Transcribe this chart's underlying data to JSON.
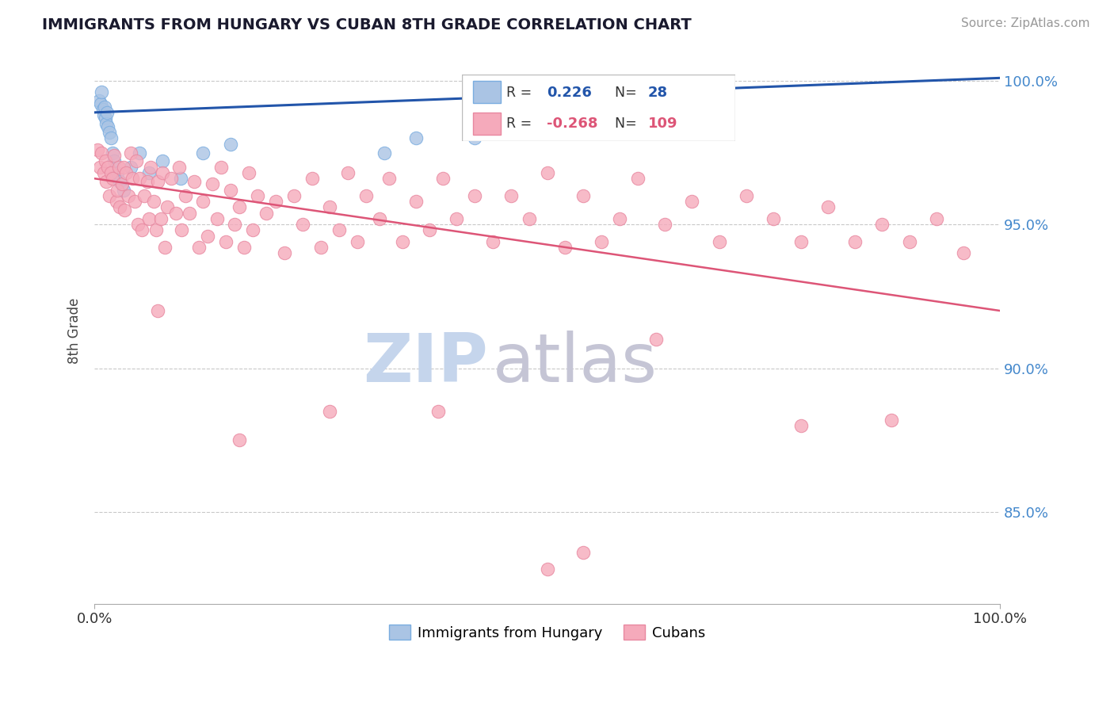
{
  "title": "IMMIGRANTS FROM HUNGARY VS CUBAN 8TH GRADE CORRELATION CHART",
  "source_text": "Source: ZipAtlas.com",
  "ylabel": "8th Grade",
  "x_min": 0.0,
  "x_max": 1.0,
  "y_min": 0.818,
  "y_max": 1.008,
  "y_ticks": [
    0.85,
    0.9,
    0.95,
    1.0
  ],
  "y_tick_labels": [
    "85.0%",
    "90.0%",
    "95.0%",
    "100.0%"
  ],
  "x_tick_labels": [
    "0.0%",
    "100.0%"
  ],
  "legend_entries": [
    {
      "label": "Immigrants from Hungary",
      "color": "#aac4e4",
      "edge": "#7aade0",
      "R": 0.226,
      "N": 28
    },
    {
      "label": "Cubans",
      "color": "#f5aabb",
      "edge": "#e888a0",
      "R": -0.268,
      "N": 109
    }
  ],
  "blue_scatter_x": [
    0.005,
    0.007,
    0.008,
    0.009,
    0.01,
    0.011,
    0.012,
    0.013,
    0.014,
    0.015,
    0.016,
    0.018,
    0.02,
    0.022,
    0.025,
    0.028,
    0.032,
    0.04,
    0.05,
    0.06,
    0.075,
    0.095,
    0.12,
    0.15,
    0.32,
    0.355,
    0.42,
    0.56
  ],
  "blue_scatter_y": [
    0.993,
    0.992,
    0.996,
    0.99,
    0.988,
    0.991,
    0.987,
    0.985,
    0.989,
    0.984,
    0.982,
    0.98,
    0.975,
    0.972,
    0.968,
    0.965,
    0.962,
    0.97,
    0.975,
    0.968,
    0.972,
    0.966,
    0.975,
    0.978,
    0.975,
    0.98,
    0.98,
    0.982
  ],
  "pink_scatter_x": [
    0.003,
    0.006,
    0.008,
    0.01,
    0.012,
    0.013,
    0.015,
    0.016,
    0.018,
    0.02,
    0.022,
    0.024,
    0.025,
    0.027,
    0.028,
    0.03,
    0.032,
    0.033,
    0.035,
    0.037,
    0.04,
    0.042,
    0.044,
    0.046,
    0.048,
    0.05,
    0.052,
    0.055,
    0.058,
    0.06,
    0.062,
    0.065,
    0.068,
    0.07,
    0.073,
    0.075,
    0.078,
    0.08,
    0.085,
    0.09,
    0.093,
    0.096,
    0.1,
    0.105,
    0.11,
    0.115,
    0.12,
    0.125,
    0.13,
    0.135,
    0.14,
    0.145,
    0.15,
    0.155,
    0.16,
    0.165,
    0.17,
    0.175,
    0.18,
    0.19,
    0.2,
    0.21,
    0.22,
    0.23,
    0.24,
    0.25,
    0.26,
    0.27,
    0.28,
    0.29,
    0.3,
    0.315,
    0.325,
    0.34,
    0.355,
    0.37,
    0.385,
    0.4,
    0.42,
    0.44,
    0.46,
    0.48,
    0.5,
    0.52,
    0.54,
    0.56,
    0.58,
    0.6,
    0.63,
    0.66,
    0.69,
    0.72,
    0.75,
    0.78,
    0.81,
    0.84,
    0.87,
    0.9,
    0.93,
    0.96,
    0.54,
    0.07,
    0.16,
    0.26,
    0.38,
    0.5,
    0.62,
    0.78,
    0.88
  ],
  "pink_scatter_y": [
    0.976,
    0.97,
    0.975,
    0.968,
    0.972,
    0.965,
    0.97,
    0.96,
    0.968,
    0.966,
    0.974,
    0.958,
    0.962,
    0.97,
    0.956,
    0.964,
    0.97,
    0.955,
    0.968,
    0.96,
    0.975,
    0.966,
    0.958,
    0.972,
    0.95,
    0.966,
    0.948,
    0.96,
    0.965,
    0.952,
    0.97,
    0.958,
    0.948,
    0.965,
    0.952,
    0.968,
    0.942,
    0.956,
    0.966,
    0.954,
    0.97,
    0.948,
    0.96,
    0.954,
    0.965,
    0.942,
    0.958,
    0.946,
    0.964,
    0.952,
    0.97,
    0.944,
    0.962,
    0.95,
    0.956,
    0.942,
    0.968,
    0.948,
    0.96,
    0.954,
    0.958,
    0.94,
    0.96,
    0.95,
    0.966,
    0.942,
    0.956,
    0.948,
    0.968,
    0.944,
    0.96,
    0.952,
    0.966,
    0.944,
    0.958,
    0.948,
    0.966,
    0.952,
    0.96,
    0.944,
    0.96,
    0.952,
    0.968,
    0.942,
    0.96,
    0.944,
    0.952,
    0.966,
    0.95,
    0.958,
    0.944,
    0.96,
    0.952,
    0.944,
    0.956,
    0.944,
    0.95,
    0.944,
    0.952,
    0.94,
    0.836,
    0.92,
    0.875,
    0.885,
    0.885,
    0.83,
    0.91,
    0.88,
    0.882
  ],
  "blue_line_x": [
    0.0,
    1.0
  ],
  "blue_line_y": [
    0.989,
    1.001
  ],
  "pink_line_x": [
    0.0,
    1.0
  ],
  "pink_line_y": [
    0.966,
    0.92
  ],
  "blue_line_color": "#2255aa",
  "pink_line_color": "#dd5577",
  "watermark_zip": "ZIP",
  "watermark_atlas": "atlas",
  "watermark_color_zip": "#c5d5ec",
  "watermark_color_atlas": "#c5c5d5",
  "title_color": "#1a1a2e",
  "grid_color": "#bbbbbb",
  "right_label_color": "#4488cc",
  "axis_label_color": "#444444"
}
